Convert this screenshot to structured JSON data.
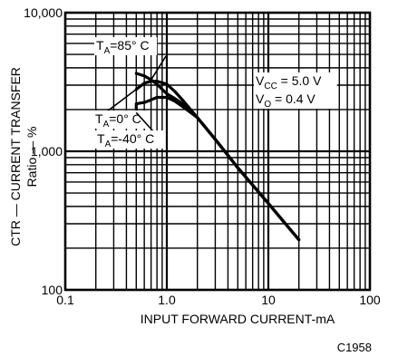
{
  "chart_data": {
    "type": "line",
    "title": "",
    "xlabel": "INPUT FORWARD CURRENT-mA",
    "ylabel_line1": "CTR — CURRENT TRANSFER",
    "ylabel_line2": "Ratio — %",
    "x_scale": "log",
    "y_scale": "log",
    "xlim": [
      0.1,
      100
    ],
    "ylim": [
      100,
      10000
    ],
    "grid": true,
    "x_ticks": [
      {
        "value": 0.1,
        "label": "0.1"
      },
      {
        "value": 1,
        "label": "1.0"
      },
      {
        "value": 10,
        "label": "10"
      },
      {
        "value": 100,
        "label": "100"
      }
    ],
    "y_ticks": [
      {
        "value": 100,
        "label": "100"
      },
      {
        "value": 1000,
        "label": "1,000"
      },
      {
        "value": 10000,
        "label": "10,000"
      }
    ],
    "conditions": [
      {
        "main": "V",
        "sub": "CC",
        "rest": " = 5.0 V"
      },
      {
        "main": "V",
        "sub": "O",
        "rest": " = 0.4 V"
      }
    ],
    "series": [
      {
        "name": "TA=85°C",
        "label_main": "T",
        "label_sub": "A",
        "label_rest": "=85° C",
        "x": [
          0.5,
          0.6,
          0.7,
          0.8,
          0.9,
          1.0,
          1.2,
          1.5,
          2,
          3,
          5,
          10,
          20
        ],
        "y": [
          3650,
          3500,
          3280,
          3050,
          2800,
          2600,
          2400,
          2150,
          1750,
          1220,
          760,
          420,
          230
        ]
      },
      {
        "name": "TA=0°C",
        "label_main": "T",
        "label_sub": "A",
        "label_rest": "=0° C",
        "x": [
          0.5,
          0.6,
          0.7,
          0.8,
          1.0,
          1.2,
          1.5,
          2,
          3,
          5,
          10,
          20
        ],
        "y": [
          2800,
          3100,
          3200,
          3200,
          3050,
          2700,
          2250,
          1750,
          1220,
          760,
          420,
          230
        ]
      },
      {
        "name": "TA=-40°C",
        "label_main": "T",
        "label_sub": "A",
        "label_rest": "=-40° C",
        "x": [
          0.5,
          0.5,
          0.6,
          0.7,
          0.8,
          1.0,
          1.2,
          1.5,
          2,
          3,
          5,
          10,
          20
        ],
        "y": [
          1900,
          2200,
          2250,
          2350,
          2450,
          2450,
          2300,
          2050,
          1750,
          1220,
          760,
          420,
          230
        ]
      }
    ],
    "figure_code": "C1958"
  }
}
